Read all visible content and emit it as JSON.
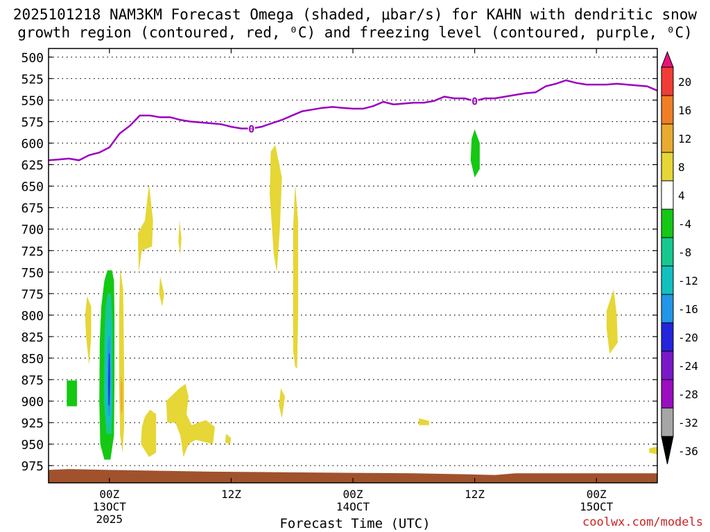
{
  "title_line1": "2025101218 NAM3KM Forecast Omega (shaded, μbar/s) for KAHN with dendritic snow",
  "title_line2": "growth region (contoured, red, ⁰C) and freezing level (contoured, purple, ⁰C)",
  "xlabel": "Forecast Time (UTC)",
  "credit": "coolwx.com/models",
  "chart_data": {
    "type": "area",
    "ylim": [
      995,
      490
    ],
    "y_ticks": [
      500,
      525,
      550,
      575,
      600,
      625,
      650,
      675,
      700,
      725,
      750,
      775,
      800,
      825,
      850,
      875,
      900,
      925,
      950,
      975
    ],
    "xlim": [
      -6,
      54
    ],
    "x_ticks": [
      {
        "x": 0,
        "lines": [
          "00Z",
          "13OCT",
          "2025"
        ]
      },
      {
        "x": 12,
        "lines": [
          "12Z"
        ]
      },
      {
        "x": 24,
        "lines": [
          "00Z",
          "14OCT"
        ]
      },
      {
        "x": 36,
        "lines": [
          "12Z"
        ]
      },
      {
        "x": 48,
        "lines": [
          "00Z",
          "15OCT"
        ]
      }
    ],
    "grid": true,
    "freezing_level": {
      "label": "0",
      "color": "#9a00c0",
      "label_x": [
        14,
        36
      ],
      "x": [
        -6,
        -5,
        -4,
        -3,
        -2,
        -1,
        0,
        1,
        2,
        3,
        4,
        5,
        6,
        7,
        8,
        9,
        10,
        11,
        12,
        13,
        14,
        15,
        16,
        17,
        18,
        19,
        20,
        21,
        22,
        23,
        24,
        25,
        26,
        27,
        28,
        29,
        30,
        31,
        32,
        33,
        34,
        35,
        36,
        37,
        38,
        39,
        40,
        41,
        42,
        43,
        44,
        45,
        46,
        47,
        48,
        49,
        50,
        51,
        52,
        53,
        54
      ],
      "y": [
        620,
        619,
        618,
        620,
        614,
        611,
        605,
        589,
        580,
        568,
        568,
        570,
        570,
        573,
        575,
        576,
        577,
        578,
        581,
        583,
        583,
        581,
        577,
        573,
        568,
        563,
        561,
        559,
        558,
        559,
        560,
        560,
        557,
        552,
        555,
        554,
        553,
        553,
        551,
        546,
        548,
        548,
        551,
        548,
        548,
        546,
        544,
        542,
        541,
        534,
        531,
        527,
        530,
        532,
        532,
        532,
        531,
        532,
        533,
        534,
        539
      ]
    },
    "shading_levels": [
      {
        "label": "20",
        "color": "#e8127a"
      },
      {
        "label": "16",
        "color": "#f03c34"
      },
      {
        "label": "12",
        "color": "#f07e26"
      },
      {
        "label": "8",
        "color": "#e8ab30"
      },
      {
        "label": "4",
        "color": "#e6d636"
      },
      {
        "label": "-4",
        "color": "#ffffff"
      },
      {
        "label": "-8",
        "color": "#14c814"
      },
      {
        "label": "-12",
        "color": "#16c890"
      },
      {
        "label": "-16",
        "color": "#12c0c0"
      },
      {
        "label": "-20",
        "color": "#2296e8"
      },
      {
        "label": "-24",
        "color": "#2424dc"
      },
      {
        "label": "-28",
        "color": "#7a18c8"
      },
      {
        "label": "-32",
        "color": "#9c0cc0"
      },
      {
        "label": "-36",
        "color": "#a6a6a6"
      }
    ],
    "omega_regions": [
      {
        "level": "-8",
        "points": [
          [
            -4.2,
            876
          ],
          [
            -3.2,
            876
          ],
          [
            -3.2,
            906
          ],
          [
            -4.2,
            906
          ]
        ]
      },
      {
        "level": "-8",
        "points": [
          [
            -0.2,
            748
          ],
          [
            0.25,
            748
          ],
          [
            0.45,
            760
          ],
          [
            0.5,
            800
          ],
          [
            0.5,
            880
          ],
          [
            0.45,
            940
          ],
          [
            0.1,
            968
          ],
          [
            -0.5,
            968
          ],
          [
            -0.9,
            950
          ],
          [
            -1.0,
            900
          ],
          [
            -0.95,
            830
          ],
          [
            -0.8,
            790
          ],
          [
            -0.5,
            760
          ]
        ]
      },
      {
        "level": "-12",
        "points": [
          [
            -0.2,
            775
          ],
          [
            0.15,
            775
          ],
          [
            0.3,
            810
          ],
          [
            0.3,
            900
          ],
          [
            0.2,
            938
          ],
          [
            -0.3,
            938
          ],
          [
            -0.55,
            900
          ],
          [
            -0.5,
            830
          ],
          [
            -0.4,
            795
          ]
        ]
      },
      {
        "level": "-16",
        "points": [
          [
            -0.15,
            805
          ],
          [
            0.1,
            805
          ],
          [
            0.2,
            850
          ],
          [
            0.2,
            910
          ],
          [
            0.05,
            928
          ],
          [
            -0.25,
            928
          ],
          [
            -0.4,
            900
          ],
          [
            -0.35,
            840
          ]
        ]
      },
      {
        "level": "-20",
        "points": [
          [
            -0.1,
            825
          ],
          [
            0.05,
            825
          ],
          [
            0.1,
            870
          ],
          [
            0.05,
            915
          ],
          [
            -0.1,
            918
          ],
          [
            -0.2,
            880
          ],
          [
            -0.2,
            845
          ]
        ]
      },
      {
        "level": "-24",
        "points": [
          [
            -0.05,
            845
          ],
          [
            0.03,
            845
          ],
          [
            0.05,
            880
          ],
          [
            0.0,
            905
          ],
          [
            -0.08,
            905
          ],
          [
            -0.1,
            875
          ]
        ]
      },
      {
        "level": "4",
        "points": [
          [
            -2.2,
            778
          ],
          [
            -1.8,
            790
          ],
          [
            -1.8,
            825
          ],
          [
            -2.0,
            858
          ],
          [
            -2.3,
            825
          ],
          [
            -2.4,
            800
          ]
        ]
      },
      {
        "level": "4",
        "points": [
          [
            1.05,
            745
          ],
          [
            1.35,
            770
          ],
          [
            1.45,
            860
          ],
          [
            1.45,
            930
          ],
          [
            1.3,
            960
          ],
          [
            1.05,
            940
          ],
          [
            0.95,
            880
          ],
          [
            0.95,
            800
          ]
        ]
      },
      {
        "level": "8",
        "points": [
          [
            1.15,
            870
          ],
          [
            1.3,
            880
          ],
          [
            1.3,
            910
          ],
          [
            1.15,
            915
          ],
          [
            1.1,
            890
          ]
        ]
      },
      {
        "level": "4",
        "points": [
          [
            3.9,
            648
          ],
          [
            4.3,
            690
          ],
          [
            4.2,
            720
          ],
          [
            3.2,
            725
          ],
          [
            2.9,
            750
          ],
          [
            2.8,
            705
          ],
          [
            3.5,
            690
          ]
        ]
      },
      {
        "level": "4",
        "points": [
          [
            5.0,
            755
          ],
          [
            5.4,
            775
          ],
          [
            5.2,
            790
          ],
          [
            4.9,
            775
          ]
        ]
      },
      {
        "level": "4",
        "points": [
          [
            6.9,
            690
          ],
          [
            7.1,
            710
          ],
          [
            7.0,
            730
          ],
          [
            6.8,
            715
          ]
        ]
      },
      {
        "level": "4",
        "points": [
          [
            4.0,
            910
          ],
          [
            4.6,
            915
          ],
          [
            4.6,
            960
          ],
          [
            3.9,
            965
          ],
          [
            3.1,
            950
          ],
          [
            3.2,
            930
          ],
          [
            3.5,
            918
          ]
        ]
      },
      {
        "level": "4",
        "points": [
          [
            6.9,
            885
          ],
          [
            7.5,
            880
          ],
          [
            7.8,
            895
          ],
          [
            7.6,
            915
          ],
          [
            8.1,
            928
          ],
          [
            9.5,
            922
          ],
          [
            10.4,
            930
          ],
          [
            10.2,
            950
          ],
          [
            8.5,
            945
          ],
          [
            7.8,
            950
          ],
          [
            7.3,
            965
          ],
          [
            7.0,
            940
          ],
          [
            6.5,
            925
          ],
          [
            5.7,
            925
          ],
          [
            5.6,
            900
          ],
          [
            6.2,
            893
          ]
        ]
      },
      {
        "level": "4",
        "points": [
          [
            11.5,
            938
          ],
          [
            12.0,
            943
          ],
          [
            11.9,
            950
          ],
          [
            11.4,
            948
          ]
        ]
      },
      {
        "level": "4",
        "points": [
          [
            16.35,
            602
          ],
          [
            17.0,
            640
          ],
          [
            16.8,
            700
          ],
          [
            16.5,
            750
          ],
          [
            16.2,
            730
          ],
          [
            15.8,
            660
          ],
          [
            15.9,
            610
          ]
        ]
      },
      {
        "level": "4",
        "points": [
          [
            18.3,
            648
          ],
          [
            18.6,
            690
          ],
          [
            18.6,
            800
          ],
          [
            18.5,
            862
          ],
          [
            18.3,
            860
          ],
          [
            18.1,
            840
          ],
          [
            18.1,
            700
          ]
        ]
      },
      {
        "level": "4",
        "points": [
          [
            16.9,
            885
          ],
          [
            17.3,
            895
          ],
          [
            17.0,
            920
          ],
          [
            16.7,
            905
          ]
        ]
      },
      {
        "level": "-8",
        "points": [
          [
            36.0,
            584
          ],
          [
            36.5,
            600
          ],
          [
            36.5,
            630
          ],
          [
            36.0,
            640
          ],
          [
            35.6,
            620
          ],
          [
            35.7,
            595
          ]
        ]
      },
      {
        "level": "4",
        "points": [
          [
            30.5,
            920
          ],
          [
            31.5,
            923
          ],
          [
            31.5,
            928
          ],
          [
            30.5,
            928
          ]
        ]
      },
      {
        "level": "4",
        "points": [
          [
            49.7,
            770
          ],
          [
            50.0,
            800
          ],
          [
            50.1,
            832
          ],
          [
            49.3,
            845
          ],
          [
            49.0,
            815
          ],
          [
            49.0,
            795
          ]
        ]
      },
      {
        "level": "4",
        "points": [
          [
            53.2,
            955
          ],
          [
            54.0,
            953
          ],
          [
            54.0,
            962
          ],
          [
            53.2,
            960
          ]
        ]
      }
    ],
    "ground": {
      "color": "#a0522d",
      "x": [
        -6,
        -4,
        0,
        5,
        10,
        20,
        30,
        35,
        38,
        40,
        45,
        50,
        54
      ],
      "y": [
        980,
        979,
        980,
        981,
        982,
        983,
        984,
        985,
        986,
        984,
        984,
        984,
        984
      ]
    }
  }
}
